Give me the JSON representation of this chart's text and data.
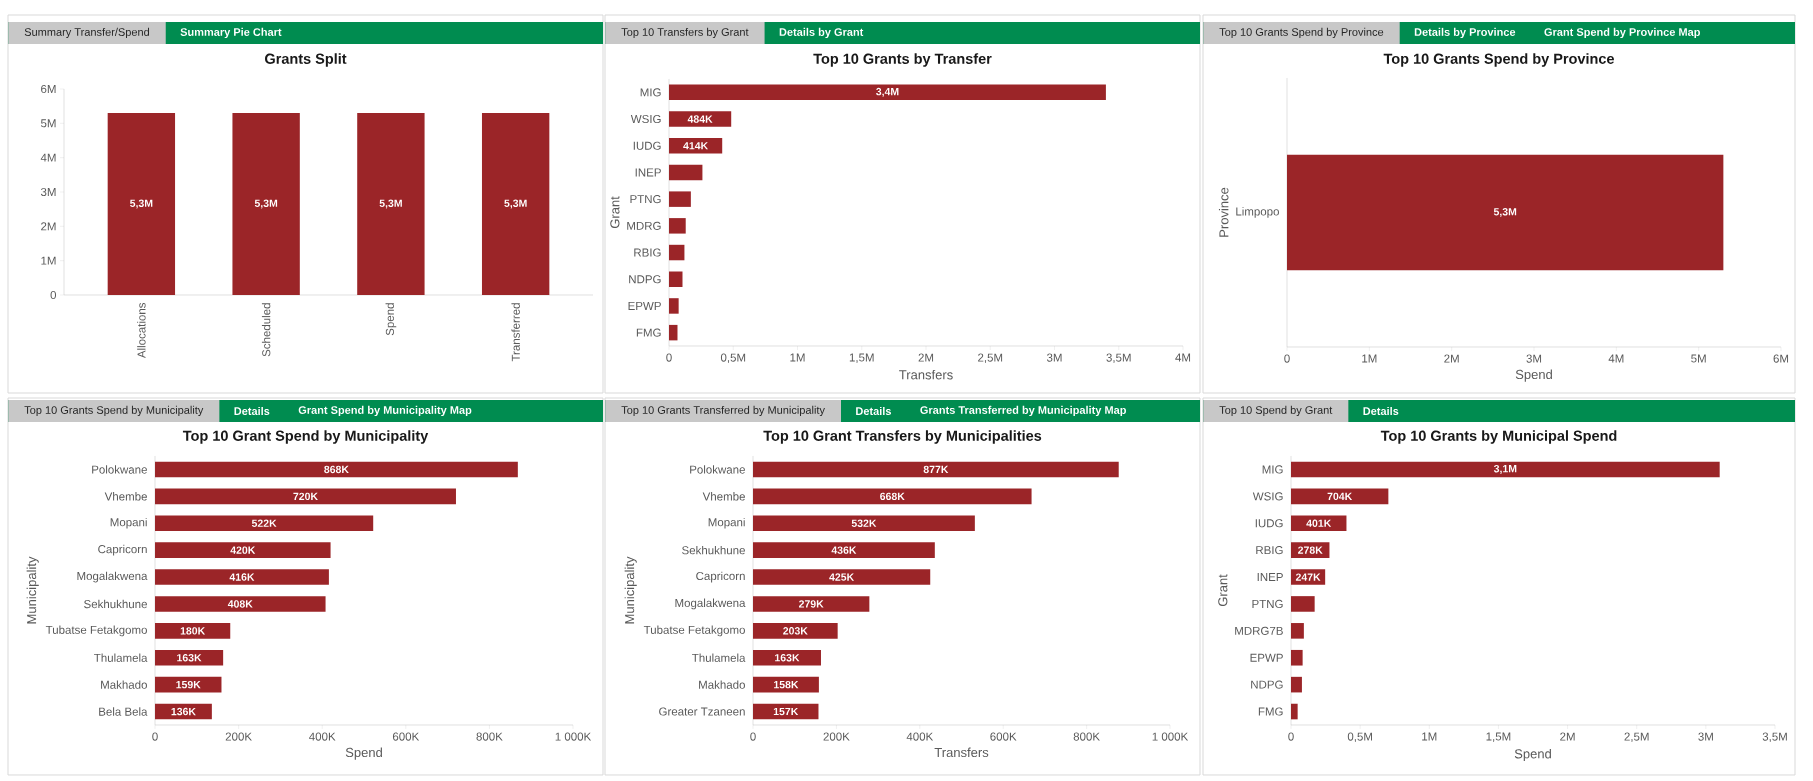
{
  "chart_data": [
    {
      "type": "bar",
      "title": "Grants Split",
      "annotations": [
        "Summary Transfer/Spend",
        "Summary Pie Chart"
      ],
      "categories": [
        "Allocations",
        "Scheduled",
        "Spend",
        "Transferred"
      ],
      "values": [
        5300000,
        5300000,
        5300000,
        5300000
      ],
      "value_labels": [
        "5,3M",
        "5,3M",
        "5,3M",
        "5,3M"
      ],
      "color": "#9b2528",
      "ylim": [
        0,
        6000000
      ],
      "yticks": [
        0,
        {
          "value": 1000000,
          "label": "1M"
        },
        {
          "value": 2000000,
          "label": "2M"
        },
        {
          "value": 3000000,
          "label": "3M"
        },
        {
          "value": 4000000,
          "label": "4M"
        },
        {
          "value": 5000000,
          "label": "5M"
        },
        {
          "value": 6000000,
          "label": "6M"
        }
      ]
    },
    {
      "type": "bar",
      "orientation": "horizontal",
      "title": "Top 10 Grants by Transfer",
      "annotations": [
        "Top 10 Transfers by Grant",
        "Details by Grant"
      ],
      "xlabel": "Transfers",
      "ylabel": "Grant",
      "categories": [
        "MIG",
        "WSIG",
        "IUDG",
        "INEP",
        "PTNG",
        "MDRG",
        "RBIG",
        "NDPG",
        "EPWP",
        "FMG"
      ],
      "values": [
        3400000,
        484000,
        414000,
        260000,
        170000,
        130000,
        120000,
        105000,
        75000,
        66000
      ],
      "value_labels": [
        "3,4M",
        "484K",
        "414K",
        null,
        null,
        null,
        null,
        null,
        null,
        null
      ],
      "color": "#9b2528",
      "xlim": [
        0,
        4000000
      ],
      "xticks": [
        0,
        {
          "value": 500000,
          "label": "0,5M"
        },
        {
          "value": 1000000,
          "label": "1M"
        },
        {
          "value": 1500000,
          "label": "1,5M"
        },
        {
          "value": 2000000,
          "label": "2M"
        },
        {
          "value": 2500000,
          "label": "2,5M"
        },
        {
          "value": 3000000,
          "label": "3M"
        },
        {
          "value": 3500000,
          "label": "3,5M"
        },
        {
          "value": 4000000,
          "label": "4M"
        }
      ]
    },
    {
      "type": "bar",
      "orientation": "horizontal",
      "title": "Top 10 Grants Spend by Province",
      "annotations": [
        "Top 10 Grants Spend by Province",
        "Details by Province",
        "Grant Spend by Province Map"
      ],
      "xlabel": "Spend",
      "ylabel": "Province",
      "categories": [
        "Limpopo"
      ],
      "values": [
        5300000
      ],
      "value_labels": [
        "5,3M"
      ],
      "color": "#9b2528",
      "xlim": [
        0,
        6000000
      ],
      "xticks": [
        0,
        {
          "value": 1000000,
          "label": "1M"
        },
        {
          "value": 2000000,
          "label": "2M"
        },
        {
          "value": 3000000,
          "label": "3M"
        },
        {
          "value": 4000000,
          "label": "4M"
        },
        {
          "value": 5000000,
          "label": "5M"
        },
        {
          "value": 6000000,
          "label": "6M"
        }
      ]
    },
    {
      "type": "bar",
      "orientation": "horizontal",
      "title": "Top 10 Grant Spend by Municipality",
      "annotations": [
        "Top 10 Grants Spend by Municipality",
        "Details",
        "Grant Spend by Municipality Map"
      ],
      "xlabel": "Spend",
      "ylabel": "Municipality",
      "categories": [
        "Polokwane",
        "Vhembe",
        "Mopani",
        "Capricorn",
        "Mogalakwena",
        "Sekhukhune",
        "Tubatse Fetakgomo",
        "Thulamela",
        "Makhado",
        "Bela Bela"
      ],
      "values": [
        868000,
        720000,
        522000,
        420000,
        416000,
        408000,
        180000,
        163000,
        159000,
        136000
      ],
      "value_labels": [
        "868K",
        "720K",
        "522K",
        "420K",
        "416K",
        "408K",
        "180K",
        "163K",
        "159K",
        "136K"
      ],
      "color": "#9b2528",
      "xlim": [
        0,
        1000000
      ],
      "xticks": [
        0,
        {
          "value": 200000,
          "label": "200K"
        },
        {
          "value": 400000,
          "label": "400K"
        },
        {
          "value": 600000,
          "label": "600K"
        },
        {
          "value": 800000,
          "label": "800K"
        },
        {
          "value": 1000000,
          "label": "1 000K"
        }
      ]
    },
    {
      "type": "bar",
      "orientation": "horizontal",
      "title": "Top 10 Grant Transfers by Municipalities",
      "annotations": [
        "Top 10 Grants Transferred by Municipality",
        "Details",
        "Grants Transferred by Municipality Map"
      ],
      "xlabel": "Transfers",
      "ylabel": "Municipality",
      "categories": [
        "Polokwane",
        "Vhembe",
        "Mopani",
        "Sekhukhune",
        "Capricorn",
        "Mogalakwena",
        "Tubatse Fetakgomo",
        "Thulamela",
        "Makhado",
        "Greater Tzaneen"
      ],
      "values": [
        877000,
        668000,
        532000,
        436000,
        425000,
        279000,
        203000,
        163000,
        158000,
        157000
      ],
      "value_labels": [
        "877K",
        "668K",
        "532K",
        "436K",
        "425K",
        "279K",
        "203K",
        "163K",
        "158K",
        "157K"
      ],
      "color": "#9b2528",
      "xlim": [
        0,
        1000000
      ],
      "xticks": [
        0,
        {
          "value": 200000,
          "label": "200K"
        },
        {
          "value": 400000,
          "label": "400K"
        },
        {
          "value": 600000,
          "label": "600K"
        },
        {
          "value": 800000,
          "label": "800K"
        },
        {
          "value": 1000000,
          "label": "1 000K"
        }
      ]
    },
    {
      "type": "bar",
      "orientation": "horizontal",
      "title": "Top 10 Grants by Municipal Spend",
      "annotations": [
        "Top 10 Spend by Grant",
        "Details"
      ],
      "xlabel": "Spend",
      "ylabel": "Grant",
      "categories": [
        "MIG",
        "WSIG",
        "IUDG",
        "RBIG",
        "INEP",
        "PTNG",
        "MDRG7B",
        "EPWP",
        "NDPG",
        "FMG"
      ],
      "values": [
        3100000,
        704000,
        401000,
        278000,
        247000,
        171000,
        93000,
        84000,
        79000,
        48000
      ],
      "value_labels": [
        "3,1M",
        "704K",
        "401K",
        "278K",
        "247K",
        null,
        null,
        null,
        null,
        null
      ],
      "color": "#9b2528",
      "xlim": [
        0,
        3500000
      ],
      "xticks": [
        0,
        {
          "value": 500000,
          "label": "0,5M"
        },
        {
          "value": 1000000,
          "label": "1M"
        },
        {
          "value": 1500000,
          "label": "1,5M"
        },
        {
          "value": 2000000,
          "label": "2M"
        },
        {
          "value": 2500000,
          "label": "2,5M"
        },
        {
          "value": 3000000,
          "label": "3M"
        },
        {
          "value": 3500000,
          "label": "3,5M"
        }
      ]
    }
  ]
}
